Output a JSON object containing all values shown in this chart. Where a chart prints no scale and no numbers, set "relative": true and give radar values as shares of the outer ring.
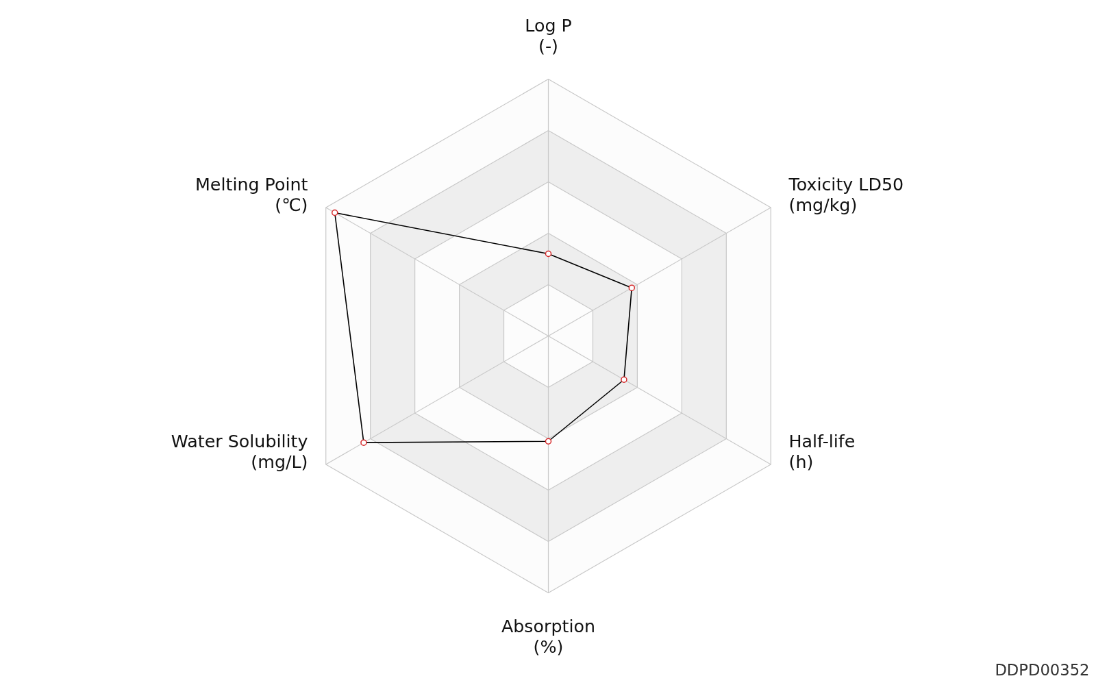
{
  "chart_data": {
    "type": "radar",
    "relative": true,
    "categories": [
      "Log P\n(-)",
      "Toxicity LD50\n(mg/kg)",
      "Half-life\n(h)",
      "Absorption\n(%)",
      "Water Solubility\n(mg/L)",
      "Melting Point\n(℃)"
    ],
    "series": [
      {
        "color": "#000000",
        "values": [
          0.32,
          0.375,
          0.34,
          0.41,
          0.83,
          0.96
        ]
      }
    ],
    "marker": "circle",
    "annotations": [
      "DDPD00352"
    ]
  }
}
